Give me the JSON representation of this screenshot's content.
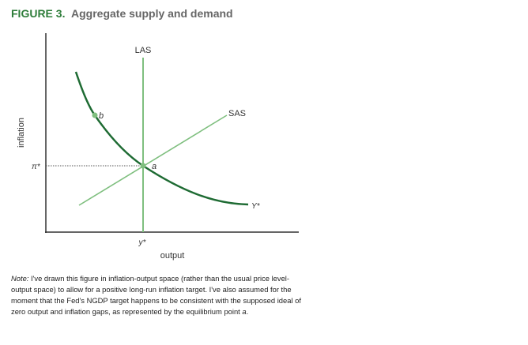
{
  "header": {
    "figure": "FIGURE 3.",
    "title": "Aggregate supply and demand"
  },
  "diagram": {
    "curves": {
      "las": "LAS",
      "sas": "SAS",
      "ad": "Y*"
    },
    "points": {
      "a": "a",
      "b": "b"
    },
    "axes": {
      "y_label": "inflation",
      "x_label": "output",
      "y_marker": "π*",
      "x_marker": "y*"
    }
  },
  "note": {
    "label": "Note:",
    "lines": [
      "I've drawn this figure in inflation-output space (rather than the usual price level-",
      "output space) to allow for a positive long-run inflation target. I've also assumed for the",
      "moment that the Fed's NGDP target happens to be consistent with the supposed ideal of",
      "zero output and inflation gaps, as represented by the equilibrium point"
    ],
    "emphasis": "a",
    "end": "."
  }
}
